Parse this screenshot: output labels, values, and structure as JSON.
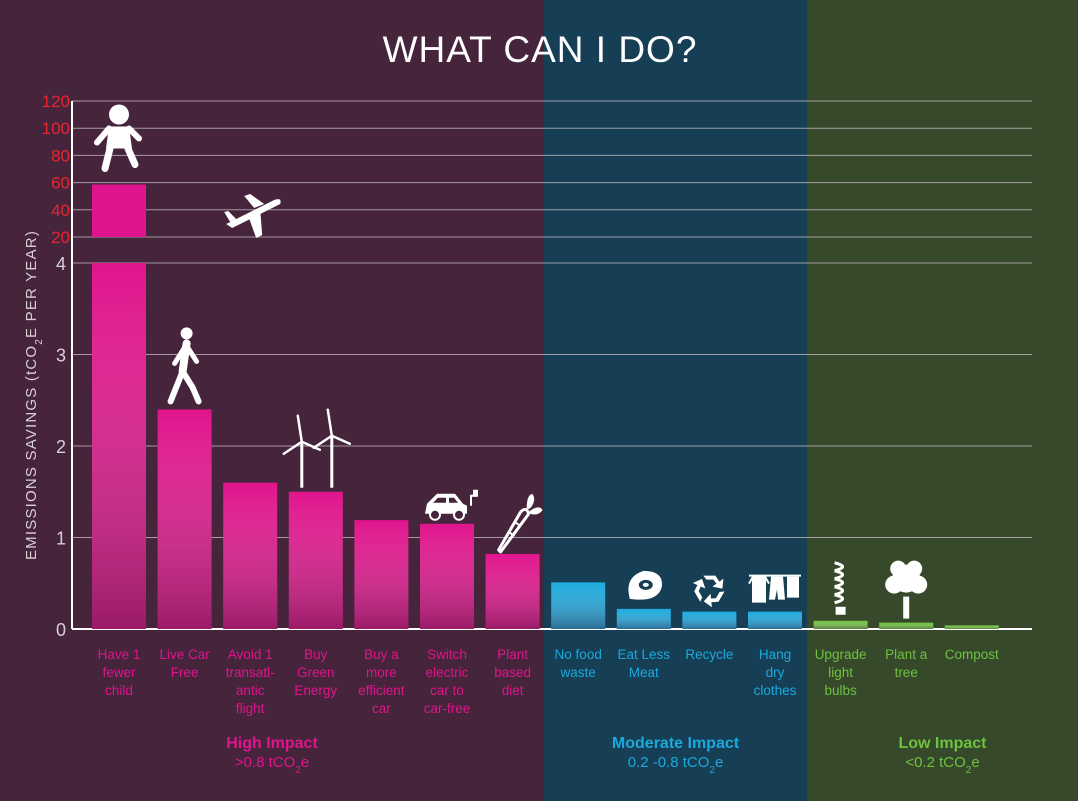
{
  "chart_data": {
    "type": "bar",
    "title": "WHAT CAN I DO?",
    "ylabel_parts": [
      "EMISSIONS SAVINGS (tCO",
      "2",
      "E PER YEAR)"
    ],
    "axis": {
      "lower_ticks": [
        "0",
        "1",
        "2",
        "3",
        "4"
      ],
      "upper_ticks": [
        "20",
        "40",
        "60",
        "80",
        "100",
        "120"
      ],
      "lower_range": [
        0,
        4
      ],
      "upper_range": [
        20,
        120
      ],
      "grid": true
    },
    "categories": [
      {
        "lines": [
          "Have 1",
          "fewer",
          "child"
        ],
        "value": 58.6,
        "group": "high",
        "icon": "baby-icon"
      },
      {
        "lines": [
          "Live Car",
          "Free"
        ],
        "value": 2.4,
        "group": "high",
        "icon": "walking-person-icon"
      },
      {
        "lines": [
          "Avoid 1",
          "transatl-",
          "antic",
          "flight"
        ],
        "value": 1.6,
        "group": "high",
        "icon": "airplane-icon"
      },
      {
        "lines": [
          "Buy",
          "Green",
          "Energy"
        ],
        "value": 1.5,
        "group": "high",
        "icon": "wind-turbine-icon"
      },
      {
        "lines": [
          "Buy a",
          "more",
          "efficient",
          "car"
        ],
        "value": 1.19,
        "group": "high",
        "icon": ""
      },
      {
        "lines": [
          "Switch",
          "electric",
          "car to",
          "car-free"
        ],
        "value": 1.15,
        "group": "high",
        "icon": "electric-car-icon"
      },
      {
        "lines": [
          "Plant",
          "based",
          "diet"
        ],
        "value": 0.82,
        "group": "high",
        "icon": "carrot-icon"
      },
      {
        "lines": [
          "No food",
          "waste"
        ],
        "value": 0.51,
        "group": "moderate",
        "icon": ""
      },
      {
        "lines": [
          "Eat Less",
          "Meat"
        ],
        "value": 0.22,
        "group": "moderate",
        "icon": "steak-icon"
      },
      {
        "lines": [
          "Recycle"
        ],
        "value": 0.19,
        "group": "moderate",
        "icon": "recycle-icon"
      },
      {
        "lines": [
          "Hang",
          "dry",
          "clothes"
        ],
        "value": 0.19,
        "group": "moderate",
        "icon": "clothesline-icon"
      },
      {
        "lines": [
          "Upgrade",
          "light",
          "bulbs"
        ],
        "value": 0.09,
        "group": "low",
        "icon": "light-bulb-icon"
      },
      {
        "lines": [
          "Plant a",
          "tree"
        ],
        "value": 0.07,
        "group": "low",
        "icon": "tree-icon"
      },
      {
        "lines": [
          "Compost"
        ],
        "value": 0.04,
        "group": "low",
        "icon": ""
      }
    ],
    "groups": [
      {
        "id": "high",
        "name": "High Impact",
        "range_prefix": ">0.8 tCO",
        "range_sub": "2",
        "range_suffix": "e",
        "bg": "#45243c",
        "bar": "#e0148c",
        "text": "#e0148c"
      },
      {
        "id": "moderate",
        "name": "Moderate Impact",
        "range_prefix": "0.2 -0.8 tCO",
        "range_sub": "2",
        "range_suffix": "e",
        "bg": "#163f55",
        "bar": "#1ba9dc",
        "text": "#1ba9dc"
      },
      {
        "id": "low",
        "name": "Low Impact",
        "range_prefix": "<0.2 tCO",
        "range_sub": "2",
        "range_suffix": "e",
        "bg": "#36492a",
        "bar": "#6ec23f",
        "text": "#6ec23f"
      }
    ],
    "colors": {
      "title": "#ffffff",
      "grid": "#c9c0c7",
      "upper_ticks": "#e8262f",
      "lower_ticks": "#d9d0d6",
      "icon": "#ffffff"
    }
  }
}
